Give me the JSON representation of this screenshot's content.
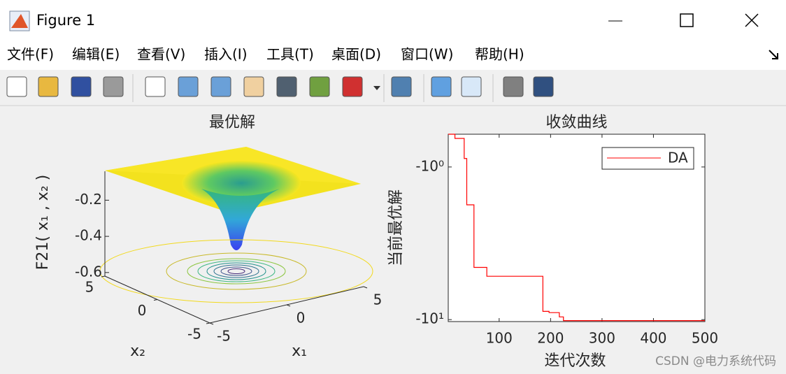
{
  "window": {
    "title": "Figure 1"
  },
  "menu": [
    "文件(F)",
    "编辑(E)",
    "查看(V)",
    "插入(I)",
    "工具(T)",
    "桌面(D)",
    "窗口(W)",
    "帮助(H)"
  ],
  "watermark": "CSDN @电力系统代码",
  "chart_data": [
    {
      "type": "surface3d",
      "title": "最优解",
      "zlabel": "F21( x₁ , x₂ )",
      "xlabel": "x₁",
      "ylabel": "x₂",
      "xlim": [
        -5,
        5
      ],
      "xticks": [
        -5,
        0,
        5
      ],
      "ylim": [
        -5,
        5
      ],
      "yticks": [
        -5,
        0,
        5
      ],
      "zlim": [
        -0.62,
        -0.04
      ],
      "zticks": [
        -0.6,
        -0.4,
        -0.2
      ]
    },
    {
      "type": "line",
      "title": "收敛曲线",
      "xlabel": "迭代次数",
      "ylabel": "当前最优解",
      "log_scale": true,
      "xlim": [
        1,
        500
      ],
      "xticks": [
        100,
        200,
        300,
        400,
        500
      ],
      "ylim": [
        -0.61,
        -10.3
      ],
      "yticks": [
        {
          "value": -1,
          "label": "-10⁰"
        },
        {
          "value": -10,
          "label": "-10¹"
        }
      ],
      "legend": "upper right",
      "x": [
        1,
        14,
        14,
        32,
        32,
        37,
        37,
        51,
        51,
        76,
        76,
        185,
        185,
        197,
        197,
        217,
        217,
        225,
        225,
        500
      ],
      "series": [
        {
          "name": "DA",
          "color": "#ff0000",
          "values": [
            -0.61,
            -0.61,
            -0.65,
            -0.65,
            -0.88,
            -0.88,
            -1.77,
            -1.77,
            -4.55,
            -4.55,
            -5.2,
            -5.2,
            -8.83,
            -8.83,
            -9.0,
            -9.0,
            -9.6,
            -9.6,
            -10.15,
            -10.15
          ]
        }
      ]
    }
  ]
}
